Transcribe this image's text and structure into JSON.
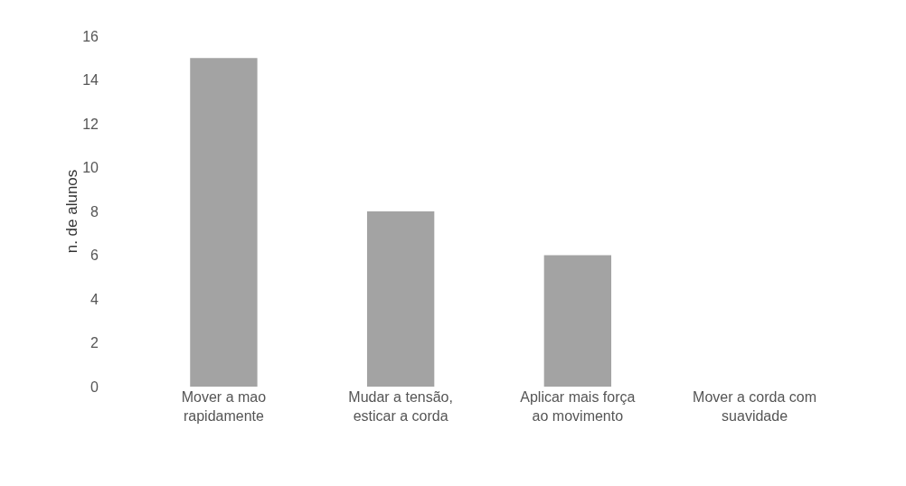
{
  "chart_data": {
    "type": "bar",
    "ylabel": "n. de alunos",
    "categories": [
      "Mover a mao rapidamente",
      "Mudar a tensão, esticar a corda",
      "Aplicar mais força ao movimento",
      "Mover a corda com suavidade"
    ],
    "values": [
      15,
      8,
      6,
      0
    ],
    "color": "#a3a3a3",
    "ylim": [
      0,
      16
    ],
    "yticks": [
      0,
      2,
      4,
      6,
      8,
      10,
      12,
      14,
      16
    ]
  }
}
